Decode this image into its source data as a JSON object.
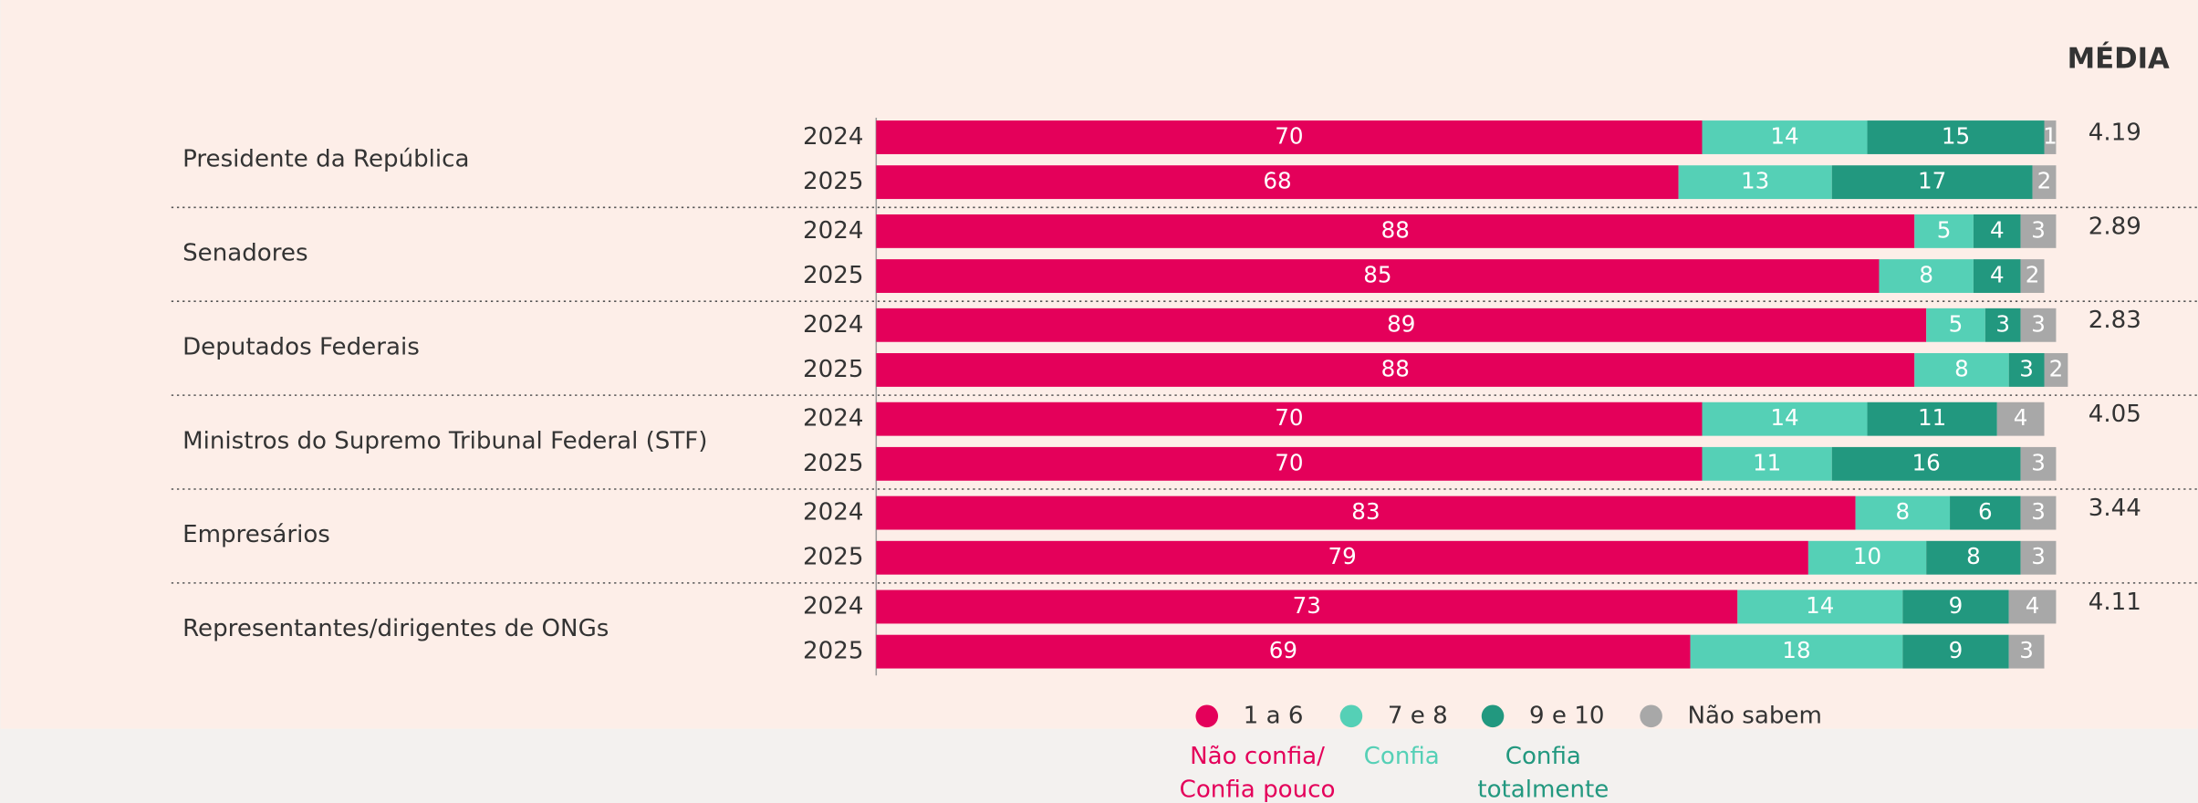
{
  "chart_data": {
    "type": "stacked-barh",
    "mean_header": "MÉDIA",
    "groups": [
      "Presidente da República",
      "Senadores",
      "Deputados Federais",
      "Ministros do Supremo Tribunal Federal (STF)",
      "Empresários",
      "Representantes/dirigentes de ONGs"
    ],
    "categories": [
      "2024",
      "2025",
      "2024",
      "2025",
      "2024",
      "2025",
      "2024",
      "2025",
      "2024",
      "2025",
      "2024",
      "2025"
    ],
    "xlim": [
      0,
      100
    ],
    "series": [
      {
        "name": "1 a 6",
        "description": [
          "Não confia/",
          "Confia pouco"
        ],
        "color": "#e4005a",
        "values": [
          70,
          68,
          88,
          85,
          89,
          88,
          70,
          70,
          83,
          79,
          73,
          69
        ]
      },
      {
        "name": "7 e 8",
        "description": [
          "Confia"
        ],
        "color": "#55d0b6",
        "values": [
          14,
          13,
          5,
          8,
          5,
          8,
          14,
          11,
          8,
          10,
          14,
          18
        ]
      },
      {
        "name": "9 e 10",
        "description": [
          "Confia",
          "totalmente"
        ],
        "color": "#22987f",
        "values": [
          15,
          17,
          4,
          4,
          3,
          3,
          11,
          16,
          6,
          8,
          9,
          9
        ]
      },
      {
        "name": "Não sabem",
        "color": "#a8a8a8",
        "values": [
          1,
          2,
          3,
          2,
          3,
          2,
          4,
          3,
          3,
          3,
          4,
          3
        ]
      }
    ],
    "means": [
      4.19,
      2.89,
      2.83,
      4.05,
      3.44,
      4.11
    ]
  }
}
